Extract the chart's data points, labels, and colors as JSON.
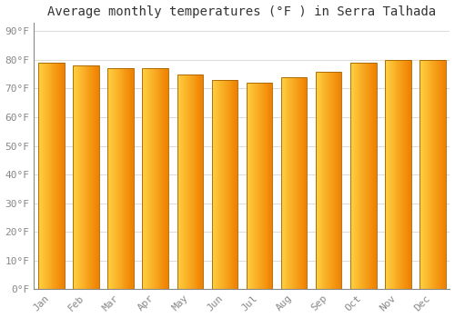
{
  "months": [
    "Jan",
    "Feb",
    "Mar",
    "Apr",
    "May",
    "Jun",
    "Jul",
    "Aug",
    "Sep",
    "Oct",
    "Nov",
    "Dec"
  ],
  "values": [
    79,
    78,
    77,
    77,
    75,
    73,
    72,
    74,
    76,
    79,
    80,
    80
  ],
  "bar_color_left": "#FFD040",
  "bar_color_right": "#F08000",
  "bar_edge_color": "#A06000",
  "background_color": "#FFFFFF",
  "grid_color": "#DDDDDD",
  "title": "Average monthly temperatures (°F ) in Serra Talhada",
  "title_fontsize": 10,
  "tick_fontsize": 8,
  "yticks": [
    0,
    10,
    20,
    30,
    40,
    50,
    60,
    70,
    80,
    90
  ],
  "ytick_labels": [
    "0°F",
    "10°F",
    "20°F",
    "30°F",
    "40°F",
    "50°F",
    "60°F",
    "70°F",
    "80°F",
    "90°F"
  ],
  "ylim": [
    0,
    93
  ],
  "title_color": "#333333",
  "tick_color": "#888888",
  "font_family": "monospace",
  "bar_width": 0.75,
  "n_gradient_strips": 30
}
